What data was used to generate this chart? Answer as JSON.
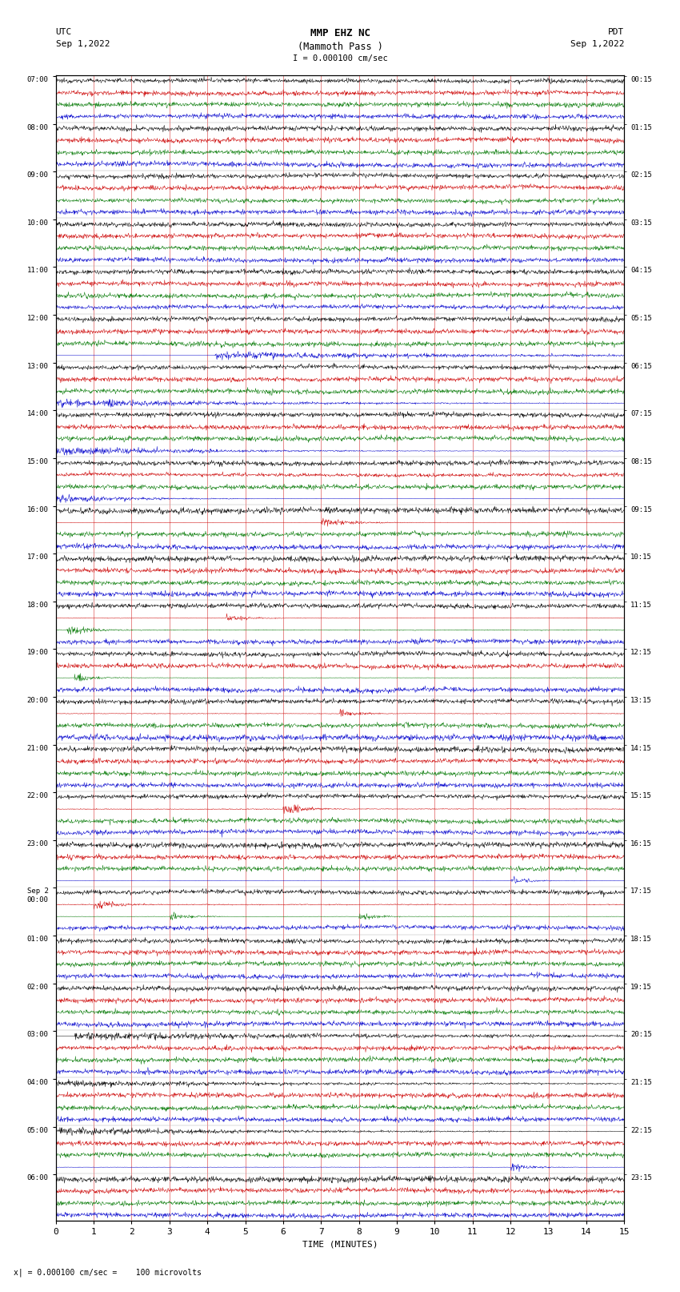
{
  "title_line1": "MMP EHZ NC",
  "title_line2": "(Mammoth Pass )",
  "scale_text": "I = 0.000100 cm/sec",
  "left_header": "UTC\nSep 1,2022",
  "right_header": "PDT\nSep 1,2022",
  "xlabel": "TIME (MINUTES)",
  "bottom_note": "x| = 0.000100 cm/sec =    100 microvolts",
  "left_times": [
    "07:00",
    "08:00",
    "09:00",
    "10:00",
    "11:00",
    "12:00",
    "13:00",
    "14:00",
    "15:00",
    "16:00",
    "17:00",
    "18:00",
    "19:00",
    "20:00",
    "21:00",
    "22:00",
    "23:00",
    "Sep 2\n00:00",
    "01:00",
    "02:00",
    "03:00",
    "04:00",
    "05:00",
    "06:00"
  ],
  "right_times": [
    "00:15",
    "01:15",
    "02:15",
    "03:15",
    "04:15",
    "05:15",
    "06:15",
    "07:15",
    "08:15",
    "09:15",
    "10:15",
    "11:15",
    "12:15",
    "13:15",
    "14:15",
    "15:15",
    "16:15",
    "17:15",
    "18:15",
    "19:15",
    "20:15",
    "21:15",
    "22:15",
    "23:15"
  ],
  "n_groups": 24,
  "traces_per_group": 4,
  "minutes_per_row": 15,
  "bg_color": "#ffffff",
  "trace_colors": [
    "#000000",
    "#cc0000",
    "#007700",
    "#0000cc"
  ],
  "grid_color": "#cc0000",
  "noise_base": 0.015
}
